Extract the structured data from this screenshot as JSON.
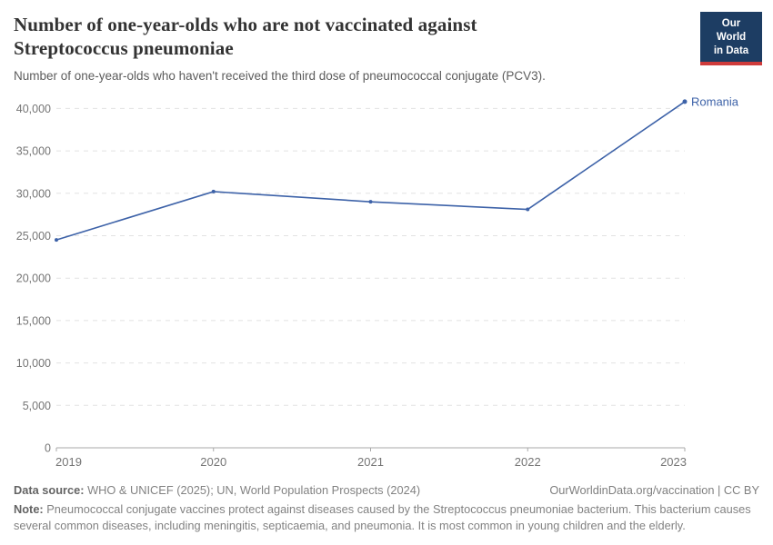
{
  "header": {
    "title": "Number of one-year-olds who are not vaccinated against Streptococcus pneumoniae",
    "subtitle": "Number of one-year-olds who haven't received the third dose of pneumococcal conjugate (PCV3)."
  },
  "logo": {
    "line1": "Our World",
    "line2": "in Data",
    "bg_color": "#1d3d63",
    "accent_color": "#cf3b3b"
  },
  "chart_data": {
    "type": "line",
    "title": "Number of one-year-olds who are not vaccinated against Streptococcus pneumoniae",
    "subtitle": "Number of one-year-olds who haven't received the third dose of pneumococcal conjugate (PCV3).",
    "x": [
      2019,
      2020,
      2021,
      2022,
      2023
    ],
    "x_tick_labels": [
      "2019",
      "2020",
      "2021",
      "2022",
      "2023"
    ],
    "y_ticks": [
      0,
      5000,
      10000,
      15000,
      20000,
      25000,
      30000,
      35000,
      40000
    ],
    "y_tick_labels": [
      "0",
      "5,000",
      "10,000",
      "15,000",
      "20,000",
      "25,000",
      "30,000",
      "35,000",
      "40,000"
    ],
    "ylim": [
      0,
      42000
    ],
    "xlabel": "",
    "ylabel": "",
    "grid": "horizontal-dashed",
    "legend_position": "line-end-label",
    "series": [
      {
        "name": "Romania",
        "color": "#3d62a8",
        "values": [
          24500,
          30200,
          29000,
          28100,
          40800
        ]
      }
    ]
  },
  "footer": {
    "source_label": "Data source:",
    "source_text": "WHO & UNICEF (2025); UN, World Population Prospects (2024)",
    "attribution": "OurWorldinData.org/vaccination | CC BY",
    "note_label": "Note:",
    "note_text": "Pneumococcal conjugate vaccines protect against diseases caused by the Streptococcus pneumoniae bacterium. This bacterium causes several common diseases, including meningitis, septicaemia, and pneumonia. It is most common in young children and the elderly."
  }
}
